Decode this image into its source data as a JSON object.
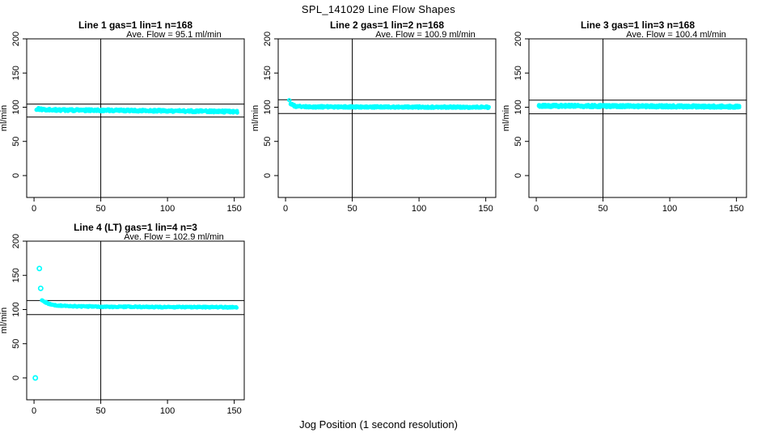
{
  "page_title": "SPL_141029  Line Flow Shapes",
  "xlabel": "Jog Position (1 second resolution)",
  "colors": {
    "points": "#00FFFF",
    "lines": "#000000",
    "background": "#FFFFFF"
  },
  "chart_data": [
    {
      "type": "scatter",
      "title": "Line 1 gas=1 lin=1 n=168",
      "annotation": "Ave. Flow =  95.1  ml/min",
      "ave_flow_ml_min": 95.1,
      "n": 168,
      "ylabel": "ml/min",
      "x_ticks": [
        0,
        50,
        100,
        150
      ],
      "y_ticks": [
        0,
        50,
        100,
        150,
        200
      ],
      "xlim": [
        -5.5,
        157.5
      ],
      "ylim": [
        -32,
        200
      ],
      "vline_x": 50,
      "hlines": [
        104.6,
        85.6
      ],
      "x_start": 2,
      "x_end": 152,
      "series_profile": [
        [
          2,
          97.5
        ],
        [
          10,
          96
        ],
        [
          80,
          95
        ],
        [
          152,
          93.5
        ]
      ],
      "noise": 1.6,
      "density": 3,
      "outliers": []
    },
    {
      "type": "scatter",
      "title": "Line 2 gas=1 lin=2 n=168",
      "annotation": "Ave. Flow =  100.9  ml/min",
      "ave_flow_ml_min": 100.9,
      "n": 168,
      "ylabel": "ml/min",
      "x_ticks": [
        0,
        50,
        100,
        150
      ],
      "y_ticks": [
        0,
        50,
        100,
        150,
        200
      ],
      "xlim": [
        -5.5,
        157.5
      ],
      "ylim": [
        -32,
        200
      ],
      "vline_x": 50,
      "hlines": [
        111.0,
        90.8
      ],
      "x_start": 3,
      "x_end": 152,
      "series_profile": [
        [
          3,
          110
        ],
        [
          4,
          105
        ],
        [
          7,
          101.5
        ],
        [
          15,
          100.5
        ],
        [
          152,
          100
        ]
      ],
      "noise": 1.3,
      "density": 3,
      "outliers": []
    },
    {
      "type": "scatter",
      "title": "Line 3 gas=1 lin=3 n=168",
      "annotation": "Ave. Flow =  100.4  ml/min",
      "ave_flow_ml_min": 100.4,
      "n": 168,
      "ylabel": "ml/min",
      "x_ticks": [
        0,
        50,
        100,
        150
      ],
      "y_ticks": [
        0,
        50,
        100,
        150,
        200
      ],
      "xlim": [
        -5.5,
        157.5
      ],
      "ylim": [
        -32,
        200
      ],
      "vline_x": 50,
      "hlines": [
        110.4,
        90.4
      ],
      "x_start": 2,
      "x_end": 152,
      "series_profile": [
        [
          2,
          102
        ],
        [
          152,
          100.8
        ]
      ],
      "noise": 1.8,
      "density": 4,
      "outliers": []
    },
    {
      "type": "scatter",
      "title": "Line 4 (LT) gas=1 lin=4 n=3",
      "annotation": "Ave. Flow =  102.9  ml/min",
      "ave_flow_ml_min": 102.9,
      "n": 3,
      "ylabel": "ml/min",
      "x_ticks": [
        0,
        50,
        100,
        150
      ],
      "y_ticks": [
        0,
        50,
        100,
        150,
        200
      ],
      "xlim": [
        -5.5,
        157.5
      ],
      "ylim": [
        -32,
        200
      ],
      "vline_x": 50,
      "hlines": [
        113.2,
        92.6
      ],
      "x_start": 6,
      "x_end": 152,
      "series_profile": [
        [
          6,
          114
        ],
        [
          10,
          109
        ],
        [
          15,
          106.5
        ],
        [
          25,
          105
        ],
        [
          50,
          104
        ],
        [
          152,
          103.2
        ]
      ],
      "noise": 0.8,
      "density": 2,
      "outliers": [
        [
          1,
          0
        ],
        [
          4,
          160
        ],
        [
          5,
          131
        ]
      ]
    }
  ]
}
